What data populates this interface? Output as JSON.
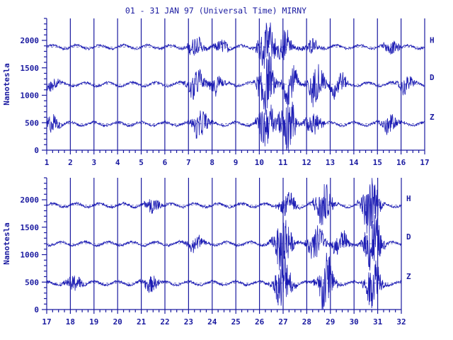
{
  "title": "01 - 31 JAN 97 (Universal Time) MIRNY",
  "chart_data": [
    {
      "type": "line",
      "ylabel": "Nanotesla",
      "ylim": [
        0,
        2400
      ],
      "yticks": [
        0,
        500,
        1000,
        1500,
        2000
      ],
      "xlim": [
        1,
        17
      ],
      "xticks": [
        1,
        2,
        3,
        4,
        5,
        6,
        7,
        8,
        9,
        10,
        11,
        12,
        13,
        14,
        15,
        16,
        17
      ],
      "grid": "vertical lines at each day",
      "series": [
        {
          "name": "H",
          "color": "#1c1cb4",
          "baseline": 1880,
          "disturbances": [
            {
              "x": 7.3,
              "amp": 180
            },
            {
              "x": 8.4,
              "amp": 120
            },
            {
              "x": 10.3,
              "amp": 420
            },
            {
              "x": 11.0,
              "amp": 300
            },
            {
              "x": 12.2,
              "amp": 140
            },
            {
              "x": 15.6,
              "amp": 120
            }
          ]
        },
        {
          "name": "D",
          "color": "#1c1cb4",
          "baseline": 1200,
          "disturbances": [
            {
              "x": 1.2,
              "amp": 120
            },
            {
              "x": 7.3,
              "amp": 260
            },
            {
              "x": 8.2,
              "amp": 180
            },
            {
              "x": 10.3,
              "amp": 520
            },
            {
              "x": 11.3,
              "amp": 320
            },
            {
              "x": 12.4,
              "amp": 360
            },
            {
              "x": 13.3,
              "amp": 240
            },
            {
              "x": 16.2,
              "amp": 150
            }
          ]
        },
        {
          "name": "Z",
          "color": "#1c1cb4",
          "baseline": 480,
          "disturbances": [
            {
              "x": 1.2,
              "amp": 180
            },
            {
              "x": 7.5,
              "amp": 260
            },
            {
              "x": 10.3,
              "amp": 420
            },
            {
              "x": 11.2,
              "amp": 520
            },
            {
              "x": 12.3,
              "amp": 220
            },
            {
              "x": 15.5,
              "amp": 180
            }
          ]
        }
      ]
    },
    {
      "type": "line",
      "ylabel": "Nanotesla",
      "ylim": [
        0,
        2400
      ],
      "yticks": [
        0,
        500,
        1000,
        1500,
        2000
      ],
      "xlim": [
        17,
        32
      ],
      "xticks": [
        17,
        18,
        19,
        20,
        21,
        22,
        23,
        24,
        25,
        26,
        27,
        28,
        29,
        30,
        31,
        32
      ],
      "grid": "vertical lines at each day",
      "series": [
        {
          "name": "H",
          "color": "#1c1cb4",
          "baseline": 1900,
          "disturbances": [
            {
              "x": 21.5,
              "amp": 140
            },
            {
              "x": 27.2,
              "amp": 200
            },
            {
              "x": 28.7,
              "amp": 380
            },
            {
              "x": 30.7,
              "amp": 500
            }
          ]
        },
        {
          "name": "D",
          "color": "#1c1cb4",
          "baseline": 1200,
          "disturbances": [
            {
              "x": 23.3,
              "amp": 150
            },
            {
              "x": 27.0,
              "amp": 520
            },
            {
              "x": 28.4,
              "amp": 300
            },
            {
              "x": 29.4,
              "amp": 220
            },
            {
              "x": 30.8,
              "amp": 520
            }
          ]
        },
        {
          "name": "Z",
          "color": "#1c1cb4",
          "baseline": 480,
          "disturbances": [
            {
              "x": 18.2,
              "amp": 160
            },
            {
              "x": 21.4,
              "amp": 160
            },
            {
              "x": 27.0,
              "amp": 480
            },
            {
              "x": 28.8,
              "amp": 520
            },
            {
              "x": 30.8,
              "amp": 420
            }
          ]
        }
      ]
    }
  ]
}
